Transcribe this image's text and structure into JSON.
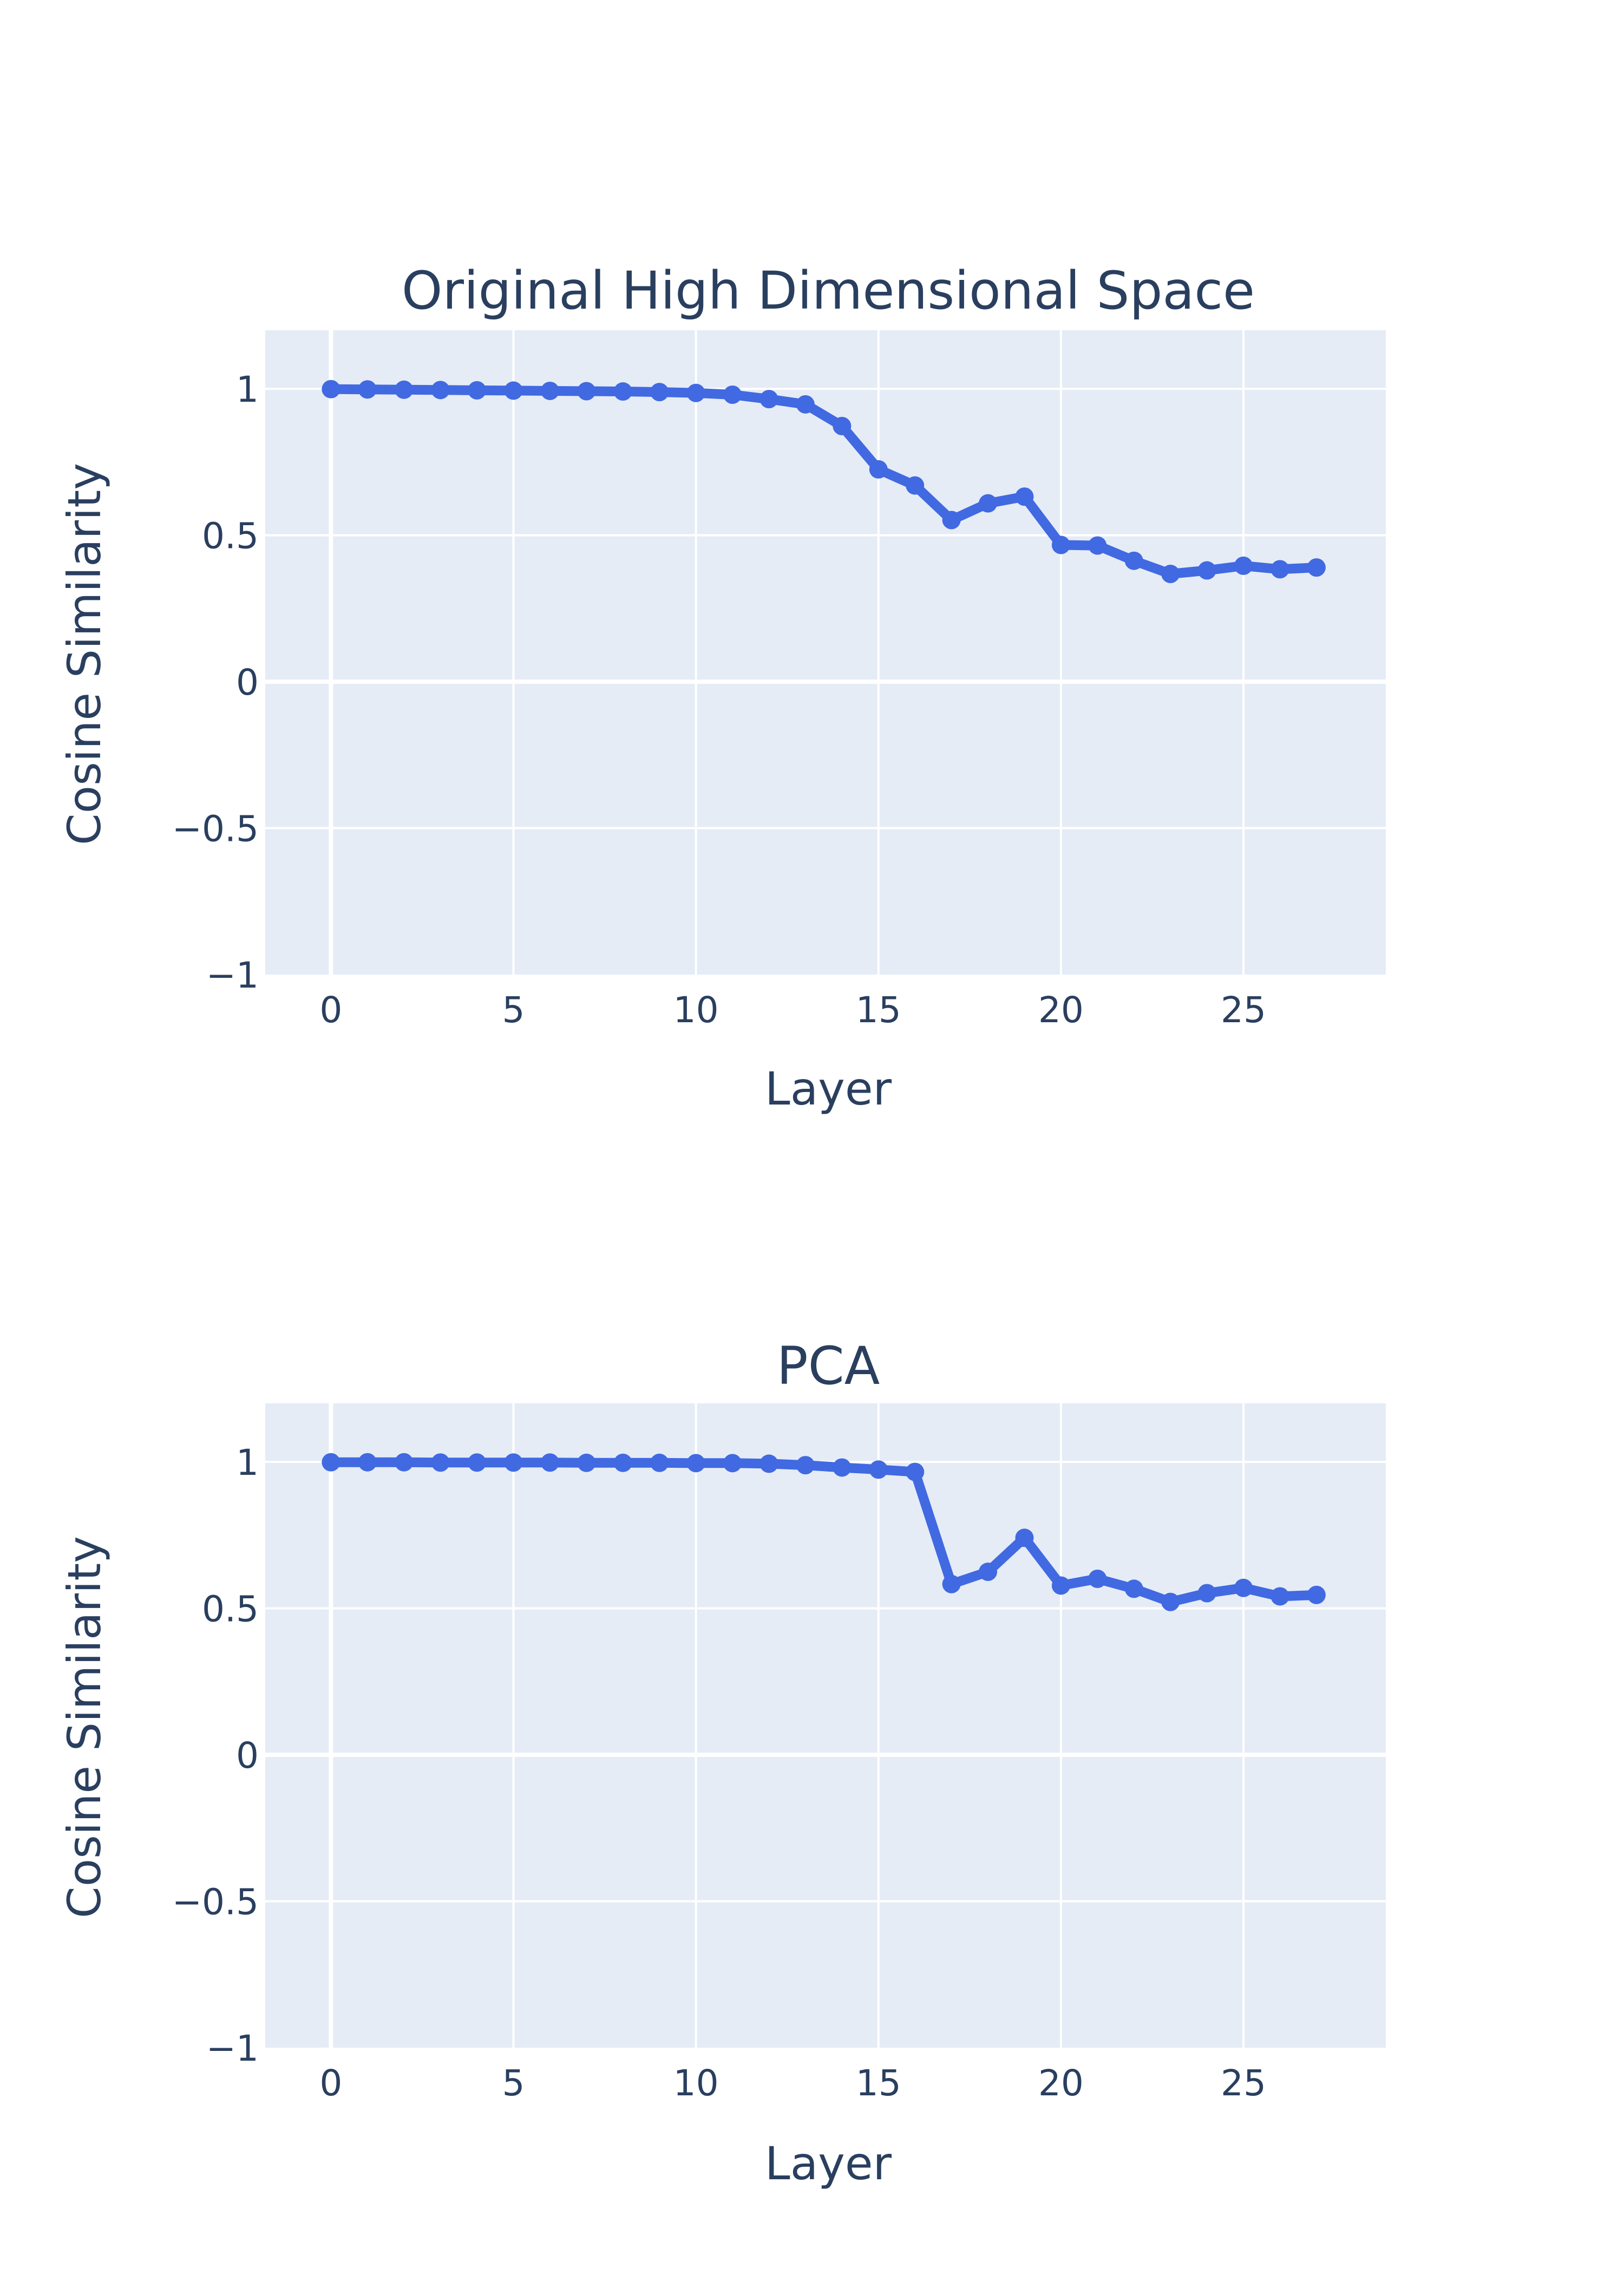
{
  "chart_data": [
    {
      "type": "line",
      "title": "Original High Dimensional Space",
      "xlabel": "Layer",
      "ylabel": "Cosine Similarity",
      "xlim": [
        -1.8,
        28.9
      ],
      "ylim": [
        -1,
        1.2
      ],
      "x_ticks": [
        0,
        5,
        10,
        15,
        20,
        25
      ],
      "y_ticks": [
        1,
        0.5,
        0,
        -0.5,
        -1
      ],
      "y_tick_labels": [
        "1",
        "0.5",
        "0",
        "−0.5",
        "−1"
      ],
      "grid": true,
      "series": [
        {
          "color": "#4169e1",
          "x": [
            0,
            1,
            2,
            3,
            4,
            5,
            6,
            7,
            8,
            9,
            10,
            11,
            12,
            13,
            14,
            15,
            16,
            17,
            18,
            19,
            20,
            21,
            22,
            23,
            24,
            25,
            26,
            27
          ],
          "y": [
            0.999,
            0.998,
            0.997,
            0.996,
            0.995,
            0.994,
            0.993,
            0.992,
            0.991,
            0.989,
            0.986,
            0.98,
            0.965,
            0.947,
            0.873,
            0.725,
            0.67,
            0.552,
            0.609,
            0.632,
            0.467,
            0.465,
            0.413,
            0.368,
            0.38,
            0.396,
            0.384,
            0.39
          ]
        }
      ]
    },
    {
      "type": "line",
      "title": "PCA",
      "xlabel": "Layer",
      "ylabel": "Cosine Similarity",
      "xlim": [
        -1.8,
        28.9
      ],
      "ylim": [
        -1,
        1.2
      ],
      "x_ticks": [
        0,
        5,
        10,
        15,
        20,
        25
      ],
      "y_ticks": [
        1,
        0.5,
        0,
        -0.5,
        -1
      ],
      "y_tick_labels": [
        "1",
        "0.5",
        "0",
        "−0.5",
        "−1"
      ],
      "grid": true,
      "series": [
        {
          "color": "#4169e1",
          "x": [
            0,
            1,
            2,
            3,
            4,
            5,
            6,
            7,
            8,
            9,
            10,
            11,
            12,
            13,
            14,
            15,
            16,
            17,
            18,
            19,
            20,
            21,
            22,
            23,
            24,
            25,
            26,
            27
          ],
          "y": [
            0.999,
            0.999,
            0.999,
            0.998,
            0.998,
            0.998,
            0.998,
            0.997,
            0.997,
            0.997,
            0.996,
            0.996,
            0.994,
            0.989,
            0.981,
            0.974,
            0.966,
            0.583,
            0.625,
            0.741,
            0.578,
            0.601,
            0.567,
            0.522,
            0.552,
            0.57,
            0.541,
            0.546
          ]
        }
      ]
    }
  ]
}
